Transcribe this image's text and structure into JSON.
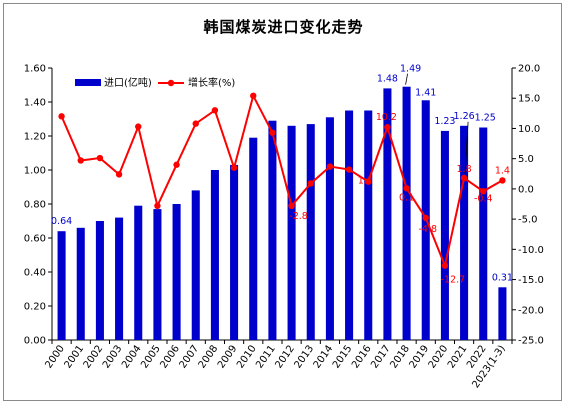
{
  "chart_data": {
    "type": "bar+line",
    "title": "韩国煤炭进口变化走势",
    "categories": [
      "2000",
      "2001",
      "2002",
      "2003",
      "2004",
      "2005",
      "2006",
      "2007",
      "2008",
      "2009",
      "2010",
      "2011",
      "2012",
      "2013",
      "2014",
      "2015",
      "2016",
      "2017",
      "2018",
      "2019",
      "2020",
      "2021",
      "2022",
      "2023(1-3)"
    ],
    "series": [
      {
        "name": "进口(亿吨)",
        "type": "bar",
        "axis": "left",
        "color": "#0000cc",
        "values": [
          0.64,
          0.66,
          0.7,
          0.72,
          0.79,
          0.77,
          0.8,
          0.88,
          1.0,
          1.03,
          1.19,
          1.29,
          1.26,
          1.27,
          1.31,
          1.35,
          1.35,
          1.48,
          1.49,
          1.41,
          1.23,
          1.26,
          1.25,
          0.31
        ]
      },
      {
        "name": "增长率(%)",
        "type": "line",
        "axis": "right",
        "color": "#ff0000",
        "values": [
          12.0,
          4.7,
          5.1,
          2.4,
          10.3,
          -2.8,
          4.0,
          10.8,
          13.0,
          3.5,
          15.4,
          9.3,
          -2.8,
          0.9,
          3.7,
          3.2,
          1.2,
          10.2,
          0.1,
          -4.8,
          -12.7,
          1.8,
          -0.4,
          1.4
        ]
      }
    ],
    "bar_labels": [
      {
        "index": 0,
        "text": "0.64"
      },
      {
        "index": 17,
        "text": "1.48"
      },
      {
        "index": 18,
        "text": "1.49"
      },
      {
        "index": 19,
        "text": "1.41"
      },
      {
        "index": 20,
        "text": "1.23"
      },
      {
        "index": 21,
        "text": "1.26"
      },
      {
        "index": 22,
        "text": "1.25"
      },
      {
        "index": 23,
        "text": "0.31"
      }
    ],
    "line_labels": [
      {
        "index": 12,
        "text": "-2.8"
      },
      {
        "index": 16,
        "text": "1.2"
      },
      {
        "index": 17,
        "text": "10.2"
      },
      {
        "index": 18,
        "text": "0.1"
      },
      {
        "index": 19,
        "text": "-4.8"
      },
      {
        "index": 20,
        "text": "-12.7"
      },
      {
        "index": 21,
        "text": "1.8"
      },
      {
        "index": 22,
        "text": "-0.4"
      },
      {
        "index": 23,
        "text": "1.4"
      }
    ],
    "y_left": {
      "min": 0,
      "max": 1.6,
      "step": 0.2,
      "decimals": 2
    },
    "y_right": {
      "min": -25,
      "max": 20,
      "step": 5,
      "decimals": 1
    },
    "legend_position": "top-left",
    "grid": false
  }
}
